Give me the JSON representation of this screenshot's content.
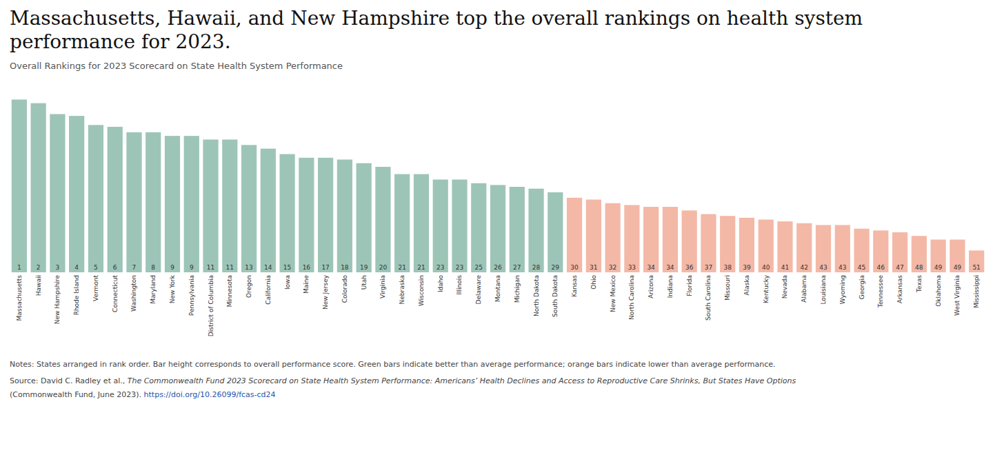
{
  "chart_data": {
    "type": "bar",
    "title": "Massachusetts, Hawaii, and New Hampshire top the overall rankings on health system performance for 2023.",
    "subtitle": "Overall Rankings for 2023 Scorecard on State Health System Performance",
    "annotations": [
      "Notes: States arranged in rank order. Bar height corresponds to overall performance score. Green bars indicate better than average performance; orange bars indicate lower than average performance.",
      "Source: David C. Radley et al., ",
      "The Commonwealth Fund 2023 Scorecard on State Health System Performance: Americans’ Health Declines and Access to Reproductive Care Shrinks, But States Have Options",
      "(Commonwealth Fund, June 2023). ",
      "https://doi.org/10.26099/fcas-cd24"
    ],
    "categories": [
      "Massachusetts",
      "Hawaii",
      "New Hampshire",
      "Rhode Island",
      "Vermont",
      "Connecticut",
      "Washington",
      "Maryland",
      "New York",
      "Pennsylvania",
      "District of Columbia",
      "Minnesota",
      "Oregon",
      "California",
      "Iowa",
      "Maine",
      "New Jersey",
      "Colorado",
      "Utah",
      "Virginia",
      "Nebraska",
      "Wisconsin",
      "Idaho",
      "Illinois",
      "Delaware",
      "Montana",
      "Michigan",
      "North Dakota",
      "South Dakota",
      "Kansas",
      "Ohio",
      "New Mexico",
      "North Carolina",
      "Arizona",
      "Indiana",
      "Florida",
      "South Carolina",
      "Missouri",
      "Alaska",
      "Kentucky",
      "Nevada",
      "Alabama",
      "Louisiana",
      "Wyoming",
      "Georgia",
      "Tennessee",
      "Arkansas",
      "Texas",
      "Oklahoma",
      "West Virginia",
      "Mississippi"
    ],
    "values": [
      95,
      93,
      87,
      86,
      81,
      80,
      77,
      77,
      75,
      75,
      73,
      73,
      70,
      68,
      65,
      63,
      63,
      62,
      60,
      58,
      54,
      54,
      51,
      51,
      49,
      48,
      47,
      46,
      44,
      41,
      40,
      38,
      37,
      36,
      36,
      34,
      32,
      31,
      30,
      29,
      28,
      27,
      26,
      26,
      24,
      23,
      22,
      20,
      18,
      18,
      12
    ],
    "ranks": [
      1,
      2,
      3,
      4,
      5,
      6,
      7,
      8,
      9,
      9,
      11,
      11,
      13,
      14,
      15,
      16,
      17,
      18,
      19,
      20,
      21,
      21,
      23,
      23,
      25,
      26,
      27,
      28,
      29,
      30,
      31,
      32,
      33,
      34,
      34,
      36,
      37,
      38,
      39,
      40,
      41,
      42,
      43,
      43,
      45,
      46,
      47,
      48,
      49,
      49,
      51
    ],
    "colors": [
      "#9dc5b7",
      "#9dc5b7",
      "#9dc5b7",
      "#9dc5b7",
      "#9dc5b7",
      "#9dc5b7",
      "#9dc5b7",
      "#9dc5b7",
      "#9dc5b7",
      "#9dc5b7",
      "#9dc5b7",
      "#9dc5b7",
      "#9dc5b7",
      "#9dc5b7",
      "#9dc5b7",
      "#9dc5b7",
      "#9dc5b7",
      "#9dc5b7",
      "#9dc5b7",
      "#9dc5b7",
      "#9dc5b7",
      "#9dc5b7",
      "#9dc5b7",
      "#9dc5b7",
      "#9dc5b7",
      "#9dc5b7",
      "#9dc5b7",
      "#9dc5b7",
      "#9dc5b7",
      "#f4b8a6",
      "#f4b8a6",
      "#f4b8a6",
      "#f4b8a6",
      "#f4b8a6",
      "#f4b8a6",
      "#f4b8a6",
      "#f4b8a6",
      "#f4b8a6",
      "#f4b8a6",
      "#f4b8a6",
      "#f4b8a6",
      "#f4b8a6",
      "#f4b8a6",
      "#f4b8a6",
      "#f4b8a6",
      "#f4b8a6",
      "#f4b8a6",
      "#f4b8a6",
      "#f4b8a6",
      "#f4b8a6",
      "#f4b8a6"
    ],
    "ylim": [
      0,
      105
    ],
    "tick_labels": "x",
    "grid": false
  }
}
